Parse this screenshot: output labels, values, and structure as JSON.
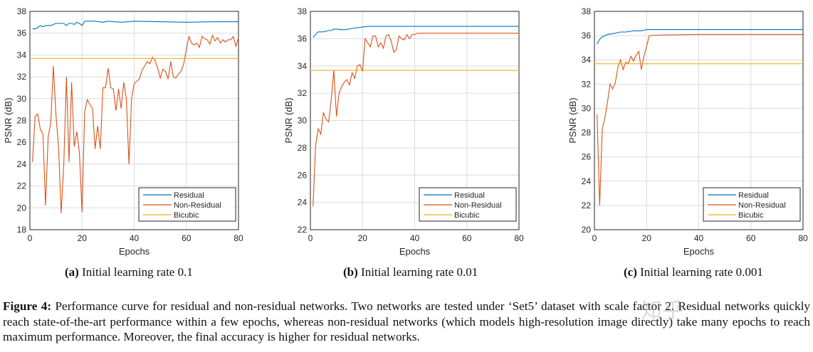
{
  "colors": {
    "residual": "#0072bd",
    "non_residual": "#d95319",
    "bicubic": "#edb120",
    "grid": "#dcdcdc",
    "axis": "#262626"
  },
  "subcaptions": [
    {
      "tag": "(a)",
      "text": "Initial learning rate 0.1"
    },
    {
      "tag": "(b)",
      "text": "Initial learning rate 0.01"
    },
    {
      "tag": "(c)",
      "text": "Initial learning rate 0.001"
    }
  ],
  "caption": {
    "label": "Figure 4:",
    "text": "Performance curve for residual and non-residual networks. Two networks are tested under ‘Set5’ dataset with scale factor 2. Residual networks quickly reach state-of-the-art performance within a few epochs, whereas non-residual networks (which models high-resolution image directly) take many epochs to reach maximum performance. Moreover, the final accuracy is higher for residual networks."
  },
  "watermark": "知乎",
  "chart_data": [
    {
      "type": "line",
      "title": "",
      "xlabel": "Epochs",
      "ylabel": "PSNR (dB)",
      "xlim": [
        0,
        80
      ],
      "ylim": [
        18,
        38
      ],
      "xticks": [
        0,
        20,
        40,
        60,
        80
      ],
      "yticks": [
        18,
        20,
        22,
        24,
        26,
        28,
        30,
        32,
        34,
        36,
        38
      ],
      "grid": true,
      "legend": "bottom-right",
      "series": [
        {
          "name": "Residual",
          "x": [
            1,
            2,
            3,
            4,
            5,
            6,
            7,
            8,
            9,
            10,
            11,
            12,
            13,
            14,
            15,
            16,
            17,
            18,
            19,
            20,
            21,
            22,
            25,
            28,
            30,
            35,
            40,
            50,
            60,
            70,
            80
          ],
          "y": [
            36.4,
            36.4,
            36.5,
            36.7,
            36.6,
            36.7,
            36.7,
            36.7,
            36.8,
            36.9,
            36.9,
            36.9,
            36.9,
            36.7,
            36.9,
            36.9,
            36.8,
            37.0,
            36.9,
            36.7,
            37.1,
            37.1,
            37.1,
            37.0,
            37.1,
            37.0,
            37.1,
            37.05,
            37.0,
            37.05,
            37.05
          ]
        },
        {
          "name": "Non-Residual",
          "x": [
            1,
            2,
            3,
            4,
            5,
            6,
            7,
            8,
            9,
            10,
            11,
            12,
            13,
            14,
            15,
            16,
            17,
            18,
            19,
            20,
            21,
            22,
            23,
            24,
            25,
            26,
            27,
            28,
            29,
            30,
            31,
            32,
            33,
            34,
            35,
            36,
            37,
            38,
            39,
            40,
            41,
            42,
            43,
            44,
            45,
            46,
            47,
            48,
            49,
            50,
            51,
            52,
            53,
            54,
            55,
            56,
            57,
            58,
            59,
            60,
            61,
            62,
            63,
            64,
            65,
            66,
            67,
            68,
            69,
            70,
            71,
            72,
            73,
            74,
            75,
            76,
            77,
            78,
            79,
            80
          ],
          "y": [
            24.2,
            28.4,
            28.6,
            27.2,
            26.8,
            20.2,
            26.5,
            27.8,
            33.0,
            28.5,
            25.5,
            19.5,
            24.0,
            32.0,
            24.2,
            31.5,
            25.6,
            27.0,
            25.0,
            19.6,
            28.8,
            29.9,
            29.5,
            29.1,
            25.4,
            27.5,
            25.4,
            31.0,
            31.0,
            32.8,
            31.0,
            30.9,
            28.9,
            30.9,
            29.1,
            31.5,
            30.0,
            24.0,
            30.0,
            31.4,
            31.6,
            31.8,
            32.6,
            33.0,
            33.4,
            33.2,
            33.8,
            33.5,
            32.8,
            31.9,
            32.7,
            32.5,
            31.8,
            33.4,
            32.0,
            31.9,
            32.3,
            32.5,
            33.2,
            34.5,
            35.7,
            35.1,
            34.9,
            35.1,
            34.7,
            35.7,
            35.5,
            35.4,
            35.0,
            35.8,
            35.3,
            35.6,
            35.1,
            35.4,
            35.2,
            35.4,
            35.4,
            35.7,
            34.8,
            35.6
          ]
        },
        {
          "name": "Bicubic",
          "x": [
            0,
            80
          ],
          "y": [
            33.68,
            33.68
          ]
        }
      ]
    },
    {
      "type": "line",
      "title": "",
      "xlabel": "Epochs",
      "ylabel": "PSNR (dB)",
      "xlim": [
        0,
        80
      ],
      "ylim": [
        22,
        38
      ],
      "xticks": [
        0,
        20,
        40,
        60,
        80
      ],
      "yticks": [
        22,
        24,
        26,
        28,
        30,
        32,
        34,
        36,
        38
      ],
      "grid": true,
      "legend": "bottom-right",
      "series": [
        {
          "name": "Residual",
          "x": [
            1,
            2,
            3,
            5,
            7,
            8,
            9,
            10,
            13,
            16,
            18,
            20,
            22,
            30,
            40,
            50,
            60,
            70,
            80
          ],
          "y": [
            36.1,
            36.3,
            36.5,
            36.5,
            36.6,
            36.6,
            36.7,
            36.7,
            36.65,
            36.75,
            36.8,
            36.85,
            36.9,
            36.9,
            36.9,
            36.9,
            36.9,
            36.9,
            36.9
          ]
        },
        {
          "name": "Non-Residual",
          "x": [
            1,
            2,
            3,
            4,
            5,
            6,
            7,
            8,
            9,
            10,
            11,
            12,
            13,
            14,
            15,
            16,
            17,
            18,
            19,
            20,
            21,
            22,
            23,
            24,
            25,
            26,
            27,
            28,
            29,
            30,
            31,
            32,
            33,
            34,
            35,
            36,
            37,
            38,
            39,
            40,
            41,
            50,
            60,
            70,
            80
          ],
          "y": [
            23.7,
            28.2,
            29.4,
            29.0,
            30.6,
            30.1,
            29.9,
            31.5,
            33.7,
            30.3,
            32.0,
            32.5,
            32.8,
            33.0,
            32.6,
            33.5,
            33.1,
            34.0,
            34.1,
            33.6,
            36.0,
            35.7,
            35.4,
            36.2,
            36.2,
            35.4,
            35.7,
            35.3,
            36.2,
            36.3,
            35.8,
            35.0,
            35.2,
            36.2,
            36.0,
            35.9,
            36.3,
            36.0,
            36.3,
            36.3,
            36.4,
            36.4,
            36.4,
            36.4,
            36.4
          ]
        },
        {
          "name": "Bicubic",
          "x": [
            0,
            80
          ],
          "y": [
            33.68,
            33.68
          ]
        }
      ]
    },
    {
      "type": "line",
      "title": "",
      "xlabel": "Epochs",
      "ylabel": "PSNR (dB)",
      "xlim": [
        0,
        80
      ],
      "ylim": [
        20,
        38
      ],
      "xticks": [
        0,
        20,
        40,
        60,
        80
      ],
      "yticks": [
        20,
        22,
        24,
        26,
        28,
        30,
        32,
        34,
        36,
        38
      ],
      "grid": true,
      "legend": "bottom-right",
      "series": [
        {
          "name": "Residual",
          "x": [
            1,
            2,
            3,
            5,
            8,
            10,
            12,
            15,
            18,
            20,
            25,
            30,
            40,
            60,
            80
          ],
          "y": [
            35.3,
            35.7,
            35.9,
            36.1,
            36.2,
            36.3,
            36.3,
            36.4,
            36.4,
            36.5,
            36.5,
            36.5,
            36.5,
            36.5,
            36.5
          ]
        },
        {
          "name": "Non-Residual",
          "x": [
            1,
            2,
            3,
            4,
            5,
            6,
            7,
            8,
            9,
            10,
            11,
            12,
            13,
            14,
            15,
            16,
            17,
            18,
            19,
            20,
            21,
            25,
            40,
            60,
            80
          ],
          "y": [
            29.5,
            22.0,
            28.3,
            29.2,
            30.5,
            32.0,
            31.6,
            32.1,
            33.4,
            34.0,
            33.2,
            33.8,
            33.7,
            34.3,
            33.9,
            34.4,
            34.7,
            33.2,
            34.3,
            35.1,
            36.0,
            36.05,
            36.1,
            36.1,
            36.1
          ]
        },
        {
          "name": "Bicubic",
          "x": [
            0,
            80
          ],
          "y": [
            33.68,
            33.68
          ]
        }
      ]
    }
  ]
}
